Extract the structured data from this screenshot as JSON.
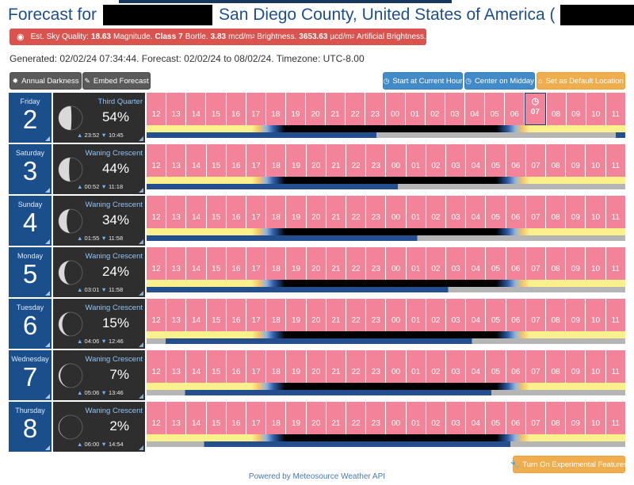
{
  "header": {
    "title_prefix": "Forecast for",
    "title_location": "San Diego County, United States of America (",
    "title_suffix": ")"
  },
  "sky_quality": {
    "label": "Est. Sky Quality:",
    "magnitude": "18.63",
    "magnitude_unit": "Magnitude.",
    "class_label": "Class",
    "class_value": "7",
    "class_unit": "Bortle.",
    "brightness": "3.83",
    "brightness_unit_a": "mcd/m",
    "brightness_unit_sup": "2",
    "brightness_unit_b": "Brightness.",
    "artificial": "3653.63",
    "artificial_unit_a": "µcd/m",
    "artificial_unit_sup": "2",
    "artificial_unit_b": "Artificial Brightness."
  },
  "generated": "Generated: 02/02/24 07:34:44. Forecast: 02/02/24 to 08/02/24. Timezone: UTC-8.00",
  "toolbar": {
    "annual_darkness": "Annual Darkness",
    "embed_forecast": "Embed Forecast",
    "start_current_hour": "Start at Current Hour",
    "center_midday": "Center on Midday",
    "set_default": "Set as Default Location"
  },
  "hours": [
    "12",
    "13",
    "14",
    "15",
    "16",
    "17",
    "18",
    "19",
    "20",
    "21",
    "22",
    "23",
    "00",
    "01",
    "02",
    "03",
    "04",
    "05",
    "06",
    "07",
    "08",
    "09",
    "10",
    "11"
  ],
  "current_hour_index": 19,
  "days": [
    {
      "day_name": "Friday",
      "date": "2",
      "phase": "Third Quarter",
      "illum": "54%",
      "illum_value": 54,
      "moonrise": "23:52",
      "moonset": "10:45"
    },
    {
      "day_name": "Saturday",
      "date": "3",
      "phase": "Waning Crescent",
      "illum": "44%",
      "illum_value": 44,
      "moonrise": "00:52",
      "moonset": "11:18"
    },
    {
      "day_name": "Sunday",
      "date": "4",
      "phase": "Waning Crescent",
      "illum": "34%",
      "illum_value": 34,
      "moonrise": "01:55",
      "moonset": "11:58"
    },
    {
      "day_name": "Monday",
      "date": "5",
      "phase": "Waning Crescent",
      "illum": "24%",
      "illum_value": 24,
      "moonrise": "03:01",
      "moonset": "11:58"
    },
    {
      "day_name": "Tuesday",
      "date": "6",
      "phase": "Waning Crescent",
      "illum": "15%",
      "illum_value": 15,
      "moonrise": "04:06",
      "moonset": "12:46"
    },
    {
      "day_name": "Wednesday",
      "date": "7",
      "phase": "Waning Crescent",
      "illum": "7%",
      "illum_value": 7,
      "moonrise": "05:06",
      "moonset": "13:46"
    },
    {
      "day_name": "Thursday",
      "date": "8",
      "phase": "Waning Crescent",
      "illum": "2%",
      "illum_value": 2,
      "moonrise": "06:00",
      "moonset": "14:54"
    }
  ],
  "colors": {
    "hour_cell": "#f28399",
    "day_box": "#1b4f8c",
    "moon_box": "#2e2e2e",
    "daylight": "#faf08c",
    "night": "#000000",
    "moon_up": "#234f8e",
    "moon_down": "#b5b5b5"
  },
  "footer": {
    "experimental": "Turn On Experimental Features",
    "powered_by": "Powered by Meteosource Weather API"
  }
}
